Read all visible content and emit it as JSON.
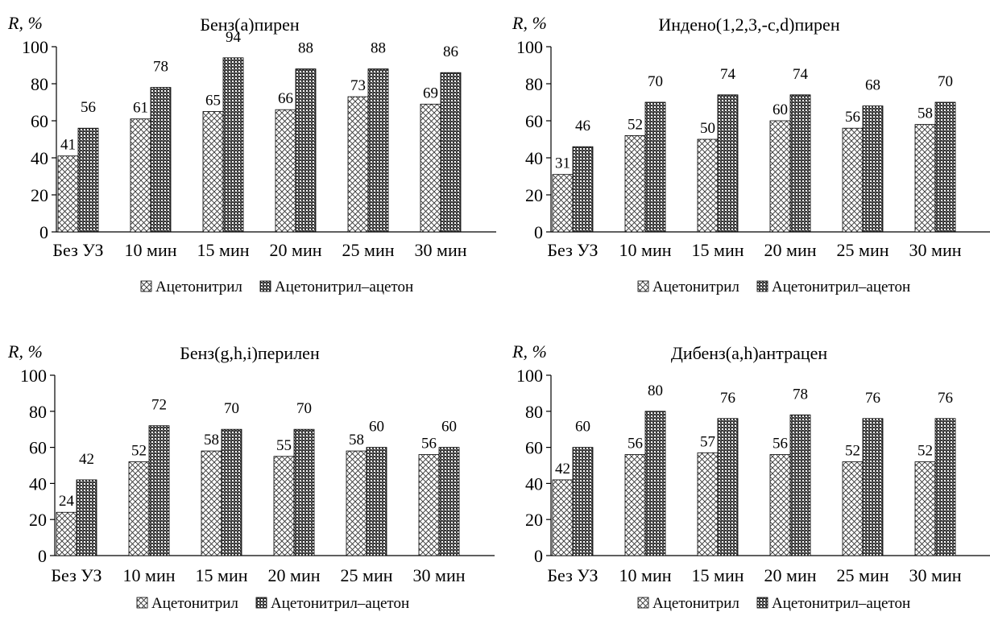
{
  "chart_data": [
    {
      "type": "bar",
      "title": "Бенз(a)пирен",
      "ylabel": "R, %",
      "xlabel": "",
      "categories": [
        "Без УЗ",
        "10 мин",
        "15 мин",
        "20 мин",
        "25 мин",
        "30 мин"
      ],
      "ylim": [
        0,
        100
      ],
      "yticks": [
        "0",
        "20",
        "40",
        "60",
        "80",
        "100"
      ],
      "series": [
        {
          "name": "Ацетонитрил",
          "values": [
            41,
            61,
            65,
            66,
            73,
            69
          ]
        },
        {
          "name": "Ацетонитрил–ацетон",
          "values": [
            56,
            78,
            94,
            88,
            88,
            86
          ]
        }
      ],
      "legend_position": "bottom",
      "grid": false
    },
    {
      "type": "bar",
      "title": "Индено(1,2,3,-c,d)пирен",
      "ylabel": "R, %",
      "xlabel": "",
      "categories": [
        "Без УЗ",
        "10 мин",
        "15 мин",
        "20 мин",
        "25 мин",
        "30 мин"
      ],
      "ylim": [
        0,
        100
      ],
      "yticks": [
        "0",
        "20",
        "40",
        "60",
        "80",
        "100"
      ],
      "series": [
        {
          "name": "Ацетонитрил",
          "values": [
            31,
            52,
            50,
            60,
            56,
            58
          ]
        },
        {
          "name": "Ацетонитрил–ацетон",
          "values": [
            46,
            70,
            74,
            74,
            68,
            70
          ]
        }
      ],
      "legend_position": "bottom",
      "grid": false
    },
    {
      "type": "bar",
      "title": "Бенз(g,h,i)перилен",
      "ylabel": "R, %",
      "xlabel": "",
      "categories": [
        "Без УЗ",
        "10 мин",
        "15 мин",
        "20 мин",
        "25 мин",
        "30 мин"
      ],
      "ylim": [
        0,
        100
      ],
      "yticks": [
        "0",
        "20",
        "40",
        "60",
        "80",
        "100"
      ],
      "series": [
        {
          "name": "Ацетонитрил",
          "values": [
            24,
            52,
            58,
            55,
            58,
            56
          ]
        },
        {
          "name": "Ацетонитрил–ацетон",
          "values": [
            42,
            72,
            70,
            70,
            60,
            60
          ]
        }
      ],
      "legend_position": "bottom",
      "grid": false
    },
    {
      "type": "bar",
      "title": "Дибенз(a,h)антрацен",
      "ylabel": "R, %",
      "xlabel": "",
      "categories": [
        "Без УЗ",
        "10 мин",
        "15 мин",
        "20 мин",
        "25 мин",
        "30 мин"
      ],
      "ylim": [
        0,
        100
      ],
      "yticks": [
        "0",
        "20",
        "40",
        "60",
        "80",
        "100"
      ],
      "series": [
        {
          "name": "Ацетонитрил",
          "values": [
            42,
            56,
            57,
            56,
            52,
            52
          ]
        },
        {
          "name": "Ацетонитрил–ацетон",
          "values": [
            60,
            80,
            76,
            78,
            76,
            76
          ]
        }
      ],
      "legend_position": "bottom",
      "grid": false
    }
  ]
}
